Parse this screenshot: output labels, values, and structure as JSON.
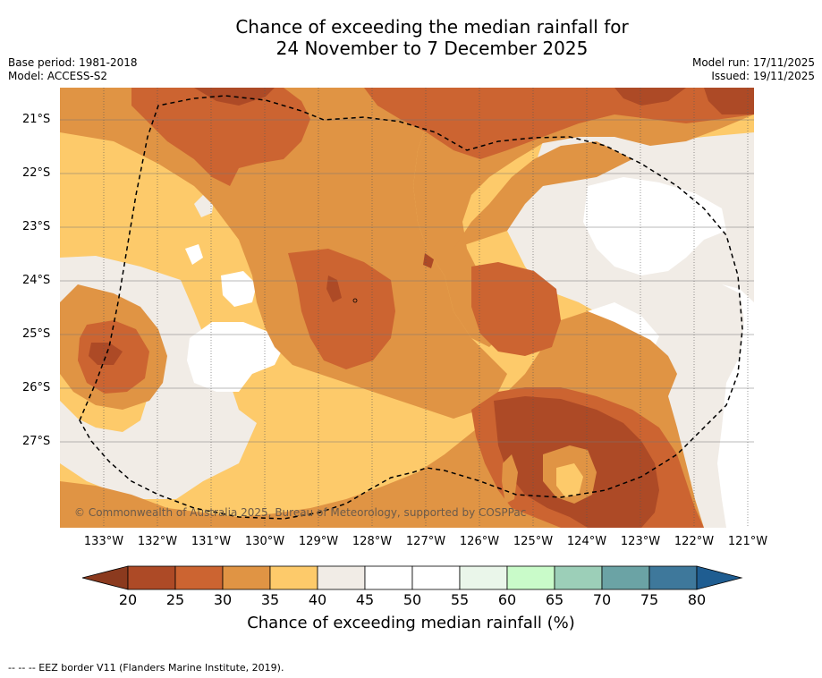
{
  "title": {
    "line1": "Chance of exceeding the median rainfall for",
    "line2": "24 November to 7 December 2025"
  },
  "meta": {
    "base_period": "Base period: 1981-2018",
    "model": "Model: ACCESS-S2",
    "model_run": "Model run: 17/11/2025",
    "issued": "Issued: 19/11/2025"
  },
  "map": {
    "credit": "© Commonwealth of Australia 2025, Bureau of Meteorology, supported by COSPPac",
    "lat_labels": [
      "21°S",
      "22°S",
      "23°S",
      "24°S",
      "25°S",
      "26°S",
      "27°S"
    ],
    "lon_labels": [
      "133°W",
      "132°W",
      "131°W",
      "130°W",
      "129°W",
      "128°W",
      "127°W",
      "126°W",
      "125°W",
      "124°W",
      "123°W",
      "122°W",
      "121°W"
    ]
  },
  "colorbar": {
    "ticks": [
      "20",
      "25",
      "30",
      "35",
      "40",
      "45",
      "50",
      "55",
      "60",
      "65",
      "70",
      "75",
      "80"
    ],
    "colors": [
      "#ad4a26",
      "#cc6431",
      "#e09444",
      "#fdca6a",
      "#f1ece6",
      "#ffffff",
      "#ffffff",
      "#eaf6ea",
      "#c9fbc9",
      "#9ccfb8",
      "#6ba3a5",
      "#3e789b"
    ],
    "under_color": "#8b3a1e",
    "over_color": "#1f5d91",
    "title": "Chance of exceeding median rainfall (%)"
  },
  "footnote": "--  --  -- EEZ border V11 (Flanders Marine Institute, 2019)."
}
